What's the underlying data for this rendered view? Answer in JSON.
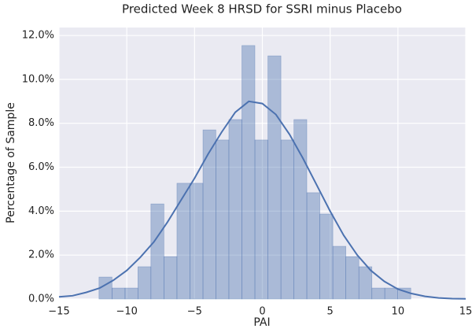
{
  "chart_data": {
    "type": "histogram",
    "title": "Predicted Week 8 HRSD for SSRI minus Placebo",
    "x_label": "PAI",
    "y_label": "Percentage of Sample",
    "bins": [
      -12.05,
      -11.09,
      -10.13,
      -9.18,
      -8.22,
      -7.26,
      -6.3,
      -5.34,
      -4.38,
      -3.43,
      -2.47,
      -1.51,
      -0.55,
      0.41,
      1.37,
      2.33,
      3.28,
      4.24,
      5.2,
      6.16,
      7.12,
      8.08,
      9.03,
      9.99,
      10.95
    ],
    "values": [
      1.0,
      0.5,
      0.5,
      1.47,
      4.33,
      1.93,
      5.27,
      5.27,
      7.7,
      7.24,
      8.17,
      11.54,
      7.24,
      11.07,
      7.24,
      8.17,
      4.84,
      3.87,
      2.4,
      1.93,
      1.47,
      0.5,
      0.5,
      0.5
    ],
    "color": "#4c72b0",
    "kde": {
      "x": [
        -15,
        -14,
        -13,
        -12,
        -11,
        -10,
        -9,
        -8,
        -7,
        -6,
        -5,
        -4,
        -3,
        -2,
        -1,
        0,
        1,
        2,
        3,
        4,
        5,
        6,
        7,
        8,
        9,
        10,
        11,
        12,
        13,
        14,
        15
      ],
      "y": [
        0.1,
        0.15,
        0.3,
        0.5,
        0.85,
        1.3,
        1.9,
        2.6,
        3.5,
        4.5,
        5.5,
        6.6,
        7.6,
        8.5,
        9.0,
        8.9,
        8.4,
        7.5,
        6.4,
        5.2,
        4.0,
        2.9,
        2.0,
        1.3,
        0.8,
        0.45,
        0.25,
        0.12,
        0.05,
        0.02,
        0.01
      ],
      "color": "#4c72b0"
    },
    "xlim": [
      -15,
      15
    ],
    "ylim": [
      0,
      12.36
    ],
    "xticks": [
      {
        "value": -15,
        "label": "−15"
      },
      {
        "value": -10,
        "label": "−10"
      },
      {
        "value": -5,
        "label": "−5"
      },
      0,
      5,
      10,
      15
    ],
    "yticks": [
      {
        "value": 0,
        "label": "0.0%"
      },
      {
        "value": 2,
        "label": "2.0%"
      },
      {
        "value": 4,
        "label": "4.0%"
      },
      {
        "value": 6,
        "label": "6.0%"
      },
      {
        "value": 8,
        "label": "8.0%"
      },
      {
        "value": 10,
        "label": "10.0%"
      },
      {
        "value": 12,
        "label": "12.0%"
      }
    ],
    "grid": true
  }
}
